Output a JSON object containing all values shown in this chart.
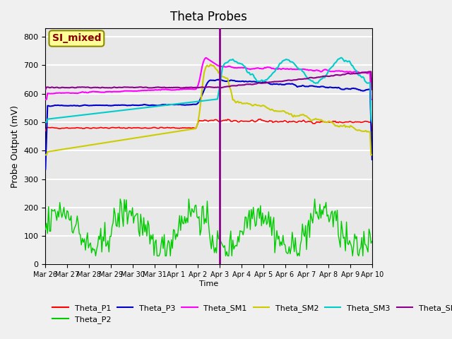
{
  "title": "Theta Probes",
  "ylabel": "Probe Output (mV)",
  "xlabel": "Time",
  "ylim": [
    0,
    830
  ],
  "yticks": [
    0,
    100,
    200,
    300,
    400,
    500,
    600,
    700,
    800
  ],
  "annotation_label": "SI_mixed",
  "annotation_color": "#8B0000",
  "annotation_bg": "#FFFF99",
  "vline_x": 13.5,
  "vline_color": "#8B008B",
  "series_colors": {
    "Theta_P1": "#FF0000",
    "Theta_P2": "#00CC00",
    "Theta_P3": "#0000CC",
    "Theta_SM1": "#FF00FF",
    "Theta_SM2": "#CCCC00",
    "Theta_SM3": "#00CCCC",
    "Theta_SM4": "#8B008B"
  },
  "x_tick_labels": [
    "Mar 26",
    "Mar 27",
    "Mar 28",
    "Mar 29",
    "Mar 30",
    "Mar 31",
    "Apr 1",
    "Apr 2",
    "Apr 3",
    "Apr 4",
    "Apr 5",
    "Apr 6",
    "Apr 7",
    "Apr 8",
    "Apr 9",
    "Apr 10"
  ],
  "num_points": 320,
  "background_color": "#E8E8E8",
  "grid_color": "#FFFFFF"
}
